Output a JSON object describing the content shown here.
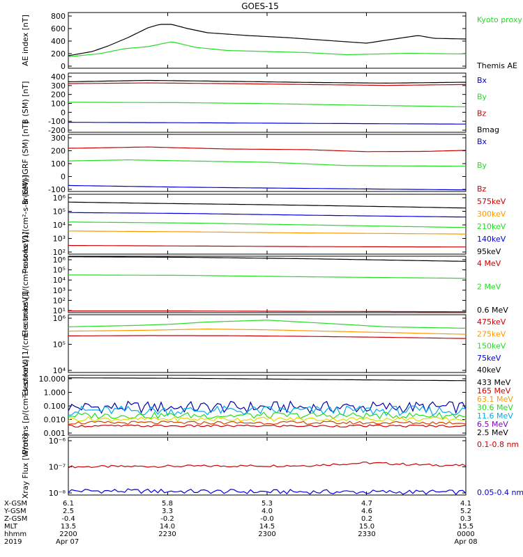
{
  "title": "GOES-15",
  "footer": {
    "row_labels": [
      "X-GSM",
      "Y-GSM",
      "Z-GSM",
      "MLT",
      "hhmm",
      "2019"
    ],
    "columns": [
      [
        "6.1",
        "2.5",
        "-0.4",
        "13.5",
        "2200",
        "Apr 07"
      ],
      [
        "5.8",
        "3.3",
        "-0.2",
        "14.0",
        "2230",
        ""
      ],
      [
        "5.3",
        "4.0",
        "-0.0",
        "14.5",
        "2300",
        ""
      ],
      [
        "4.7",
        "4.6",
        "0.2",
        "15.0",
        "2330",
        ""
      ],
      [
        "4.1",
        "5.2",
        "0.3",
        "15.5",
        "0000",
        "Apr 08"
      ]
    ]
  },
  "chart_data": [
    {
      "type": "line",
      "ylabel": "AE index [nT]",
      "yticks": [
        "800",
        "600",
        "400",
        "200",
        "0"
      ],
      "ylim": [
        0,
        800
      ],
      "legend": [
        {
          "text": "Kyoto proxy AE",
          "color": "#22dd22"
        },
        {
          "text": "Themis AE",
          "color": "#000000"
        }
      ],
      "series": [
        {
          "name": "Kyoto proxy AE",
          "color": "#22dd22",
          "x": [
            0,
            0.08,
            0.14,
            0.2,
            0.26,
            0.32,
            0.4,
            0.5,
            0.6,
            0.7,
            0.78,
            0.86,
            0.92,
            1.0
          ],
          "values": [
            165,
            210,
            280,
            310,
            380,
            300,
            255,
            240,
            225,
            195,
            205,
            215,
            210,
            205
          ]
        },
        {
          "name": "Themis AE",
          "color": "#000000",
          "x": [
            0,
            0.06,
            0.1,
            0.15,
            0.2,
            0.23,
            0.26,
            0.3,
            0.35,
            0.45,
            0.55,
            0.65,
            0.7,
            0.75,
            0.82,
            0.88,
            0.92,
            1.0
          ],
          "values": [
            180,
            240,
            320,
            440,
            580,
            630,
            630,
            570,
            510,
            470,
            440,
            400,
            380,
            360,
            420,
            470,
            430,
            420
          ]
        }
      ]
    },
    {
      "type": "line",
      "ylabel": "B (SM) [nT]",
      "yticks": [
        "400",
        "300",
        "200",
        "100",
        "0",
        "-100",
        "-200"
      ],
      "ylim": [
        -230,
        420
      ],
      "legend": [
        {
          "text": "Bx",
          "color": "#0000dd"
        },
        {
          "text": "By",
          "color": "#22dd22"
        },
        {
          "text": "Bz",
          "color": "#cc0000"
        },
        {
          "text": "Bmag",
          "color": "#000000"
        }
      ],
      "series": [
        {
          "name": "Bmag",
          "color": "#000000",
          "x": [
            0,
            0.2,
            0.4,
            0.6,
            0.8,
            1.0
          ],
          "values": [
            325,
            340,
            330,
            318,
            310,
            320
          ]
        },
        {
          "name": "Bz",
          "color": "#cc0000",
          "x": [
            0,
            0.2,
            0.4,
            0.6,
            0.8,
            1.0
          ],
          "values": [
            305,
            312,
            305,
            295,
            285,
            295
          ]
        },
        {
          "name": "By",
          "color": "#22dd22",
          "x": [
            0,
            0.3,
            0.5,
            0.7,
            1.0
          ],
          "values": [
            100,
            95,
            85,
            70,
            50
          ]
        },
        {
          "name": "Bx",
          "color": "#0000dd",
          "x": [
            0,
            0.3,
            0.6,
            1.0
          ],
          "values": [
            -120,
            -125,
            -132,
            -140
          ]
        }
      ]
    },
    {
      "type": "line",
      "ylabel": "B (SM)-IGRF (SM) [nT]",
      "yticks": [
        "300",
        "200",
        "100",
        "0",
        "-100"
      ],
      "ylim": [
        -120,
        310
      ],
      "legend": [
        {
          "text": "Bx",
          "color": "#0000dd"
        },
        {
          "text": "By",
          "color": "#22dd22"
        },
        {
          "text": "Bz",
          "color": "#cc0000"
        }
      ],
      "series": [
        {
          "name": "Bz",
          "color": "#cc0000",
          "x": [
            0,
            0.2,
            0.4,
            0.6,
            0.75,
            0.9,
            1.0
          ],
          "values": [
            205,
            215,
            200,
            195,
            180,
            182,
            190
          ]
        },
        {
          "name": "By",
          "color": "#22dd22",
          "x": [
            0,
            0.15,
            0.3,
            0.5,
            0.7,
            1.0
          ],
          "values": [
            110,
            118,
            110,
            100,
            75,
            70
          ]
        },
        {
          "name": "Bx",
          "color": "#0000dd",
          "x": [
            0,
            0.3,
            0.6,
            1.0
          ],
          "values": [
            -75,
            -88,
            -97,
            -108
          ]
        }
      ]
    },
    {
      "type": "line",
      "yscale": "log",
      "ylabel": "Protons [1/(cm²-s-sr-keV)]",
      "yticks": [
        "10⁶",
        "10⁵",
        "10⁴",
        "10³",
        "10²"
      ],
      "ylim": [
        100,
        1000000
      ],
      "legend": [
        {
          "text": "575keV",
          "color": "#cc0000"
        },
        {
          "text": "300keV",
          "color": "#ff9900"
        },
        {
          "text": "210keV",
          "color": "#22dd22"
        },
        {
          "text": "140keV",
          "color": "#0000dd"
        },
        {
          "text": "95keV",
          "color": "#000000"
        }
      ],
      "series": [
        {
          "name": "95keV",
          "color": "#000000",
          "x": [
            0,
            0.2,
            0.5,
            0.8,
            1.0
          ],
          "values": [
            300000,
            250000,
            200000,
            150000,
            120000
          ]
        },
        {
          "name": "140keV",
          "color": "#0000dd",
          "x": [
            0,
            0.3,
            0.6,
            1.0
          ],
          "values": [
            60000,
            52000,
            40000,
            30000
          ]
        },
        {
          "name": "210keV",
          "color": "#22dd22",
          "x": [
            0,
            0.3,
            0.6,
            1.0
          ],
          "values": [
            14000,
            12000,
            9000,
            6000
          ]
        },
        {
          "name": "300keV",
          "color": "#ff9900",
          "x": [
            0,
            0.3,
            0.6,
            1.0
          ],
          "values": [
            3500,
            3100,
            2600,
            2200
          ]
        },
        {
          "name": "575keV",
          "color": "#cc0000",
          "x": [
            0,
            0.3,
            0.6,
            1.0
          ],
          "values": [
            380,
            350,
            320,
            300
          ]
        }
      ]
    },
    {
      "type": "line",
      "yscale": "log",
      "ylabel": "Electrons [1/(cm²-s-sr-keV)]",
      "yticks": [
        "10⁶",
        "10⁵",
        "10⁴",
        "10³",
        "10²",
        "10¹"
      ],
      "ylim": [
        10,
        1000000
      ],
      "legend": [
        {
          "text": "4 MeV",
          "color": "#cc0000"
        },
        {
          "text": "2 MeV",
          "color": "#22dd22"
        },
        {
          "text": "0.6 MeV",
          "color": "#000000"
        }
      ],
      "series": [
        {
          "name": "0.6 MeV",
          "color": "#000000",
          "x": [
            0,
            0.3,
            0.6,
            1.0
          ],
          "values": [
            900000,
            800000,
            600000,
            350000
          ]
        },
        {
          "name": "2 MeV",
          "color": "#22dd22",
          "x": [
            0,
            0.3,
            0.6,
            1.0
          ],
          "values": [
            22000,
            20000,
            15000,
            11000
          ]
        },
        {
          "name": "4 MeV",
          "color": "#cc0000",
          "x": [
            0,
            0.3,
            0.6,
            1.0
          ],
          "values": [
            14,
            14,
            13,
            12
          ]
        }
      ]
    },
    {
      "type": "line",
      "yscale": "log",
      "ylabel": "Electrons [1/(cm²-s-sr-keV)]",
      "yticks": [
        "10⁶",
        "10⁵",
        "10⁴"
      ],
      "ylim": [
        10000,
        1000000
      ],
      "legend": [
        {
          "text": "475keV",
          "color": "#cc0000"
        },
        {
          "text": "275keV",
          "color": "#ff9900"
        },
        {
          "text": "150keV",
          "color": "#22dd22"
        },
        {
          "text": "75keV",
          "color": "#0000dd"
        },
        {
          "text": "40keV",
          "color": "#000000"
        }
      ],
      "series": [
        {
          "name": "150keV",
          "color": "#22dd22",
          "x": [
            0,
            0.18,
            0.26,
            0.35,
            0.5,
            0.65,
            0.8,
            1.0
          ],
          "values": [
            380000,
            430000,
            470000,
            560000,
            650000,
            500000,
            380000,
            340000
          ]
        },
        {
          "name": "275keV",
          "color": "#ff9900",
          "x": [
            0,
            0.2,
            0.35,
            0.5,
            0.75,
            1.0
          ],
          "values": [
            270000,
            290000,
            320000,
            300000,
            250000,
            210000
          ]
        },
        {
          "name": "475keV",
          "color": "#cc0000",
          "x": [
            0,
            0.2,
            0.4,
            0.6,
            0.8,
            1.0
          ],
          "values": [
            185000,
            190000,
            188000,
            178000,
            165000,
            150000
          ]
        }
      ]
    },
    {
      "type": "line",
      "yscale": "log",
      "ylabel": "Protons [p/(cm²-s-sr-keV)]",
      "yticks": [
        "10.000",
        "1.000",
        "0.100",
        "0.010",
        "0.001"
      ],
      "ylim": [
        0.0008,
        20
      ],
      "legend": [
        {
          "text": "433 MeV",
          "color": "#000000"
        },
        {
          "text": "165 MeV",
          "color": "#cc0000"
        },
        {
          "text": "63.1 MeV",
          "color": "#ff9900"
        },
        {
          "text": "30.6 MeV",
          "color": "#22dd22"
        },
        {
          "text": "11.6 MeV",
          "color": "#00aaee"
        },
        {
          "text": "6.5 MeV",
          "color": "#8800cc"
        },
        {
          "text": "2.5 MeV",
          "color": "#000000"
        }
      ],
      "series": [
        {
          "name": "2.5 MeV",
          "color": "#000000",
          "x": [
            0,
            0.3,
            0.6,
            1.0
          ],
          "values": [
            13,
            12,
            10,
            8
          ]
        },
        {
          "name": "6.5 MeV",
          "color": "#0000aa",
          "noise": 0.22,
          "x": [
            0,
            1.0
          ],
          "values": [
            0.09,
            0.09
          ]
        },
        {
          "name": "11.6 MeV",
          "color": "#00aaee",
          "noise": 0.18,
          "x": [
            0,
            1.0
          ],
          "values": [
            0.05,
            0.05
          ]
        },
        {
          "name": "30.6 MeV",
          "color": "#22dd22",
          "noise": 0.12,
          "x": [
            0,
            1.0
          ],
          "values": [
            0.022,
            0.022
          ]
        },
        {
          "name": "63.1 MeV",
          "color": "#dddd00",
          "noise": 0.08,
          "x": [
            0,
            1.0
          ],
          "values": [
            0.012,
            0.012
          ]
        },
        {
          "name": "165 MeV",
          "color": "#cc4400",
          "noise": 0.06,
          "x": [
            0,
            1.0
          ],
          "values": [
            0.0065,
            0.0065
          ]
        },
        {
          "name": "433 MeV",
          "color": "#cc0000",
          "noise": 0.04,
          "x": [
            0,
            1.0
          ],
          "values": [
            0.0038,
            0.0038
          ]
        }
      ]
    },
    {
      "type": "line",
      "yscale": "log",
      "ylabel": "Xray Flux [W/m²]",
      "yticks": [
        "10⁻⁶",
        "10⁻⁷",
        "10⁻⁸"
      ],
      "ylim": [
        1e-08,
        1e-06
      ],
      "legend": [
        {
          "text": "0.1-0.8 nm",
          "color": "#cc0000"
        },
        {
          "text": "0.05-0.4 nm",
          "color": "#0000dd"
        }
      ],
      "series": [
        {
          "name": "0.1-0.8 nm",
          "color": "#cc0000",
          "noise": 0.02,
          "x": [
            0,
            0.3,
            0.6,
            0.75,
            0.9,
            1.0
          ],
          "values": [
            9.5e-08,
            1e-07,
            1.05e-07,
            1.3e-07,
            1.1e-07,
            1.05e-07
          ]
        },
        {
          "name": "0.05-0.4 nm",
          "color": "#0000dd",
          "noise": 0.04,
          "x": [
            0,
            0.5,
            1.0
          ],
          "values": [
            1.4e-08,
            1.3e-08,
            1.25e-08
          ]
        }
      ]
    }
  ]
}
